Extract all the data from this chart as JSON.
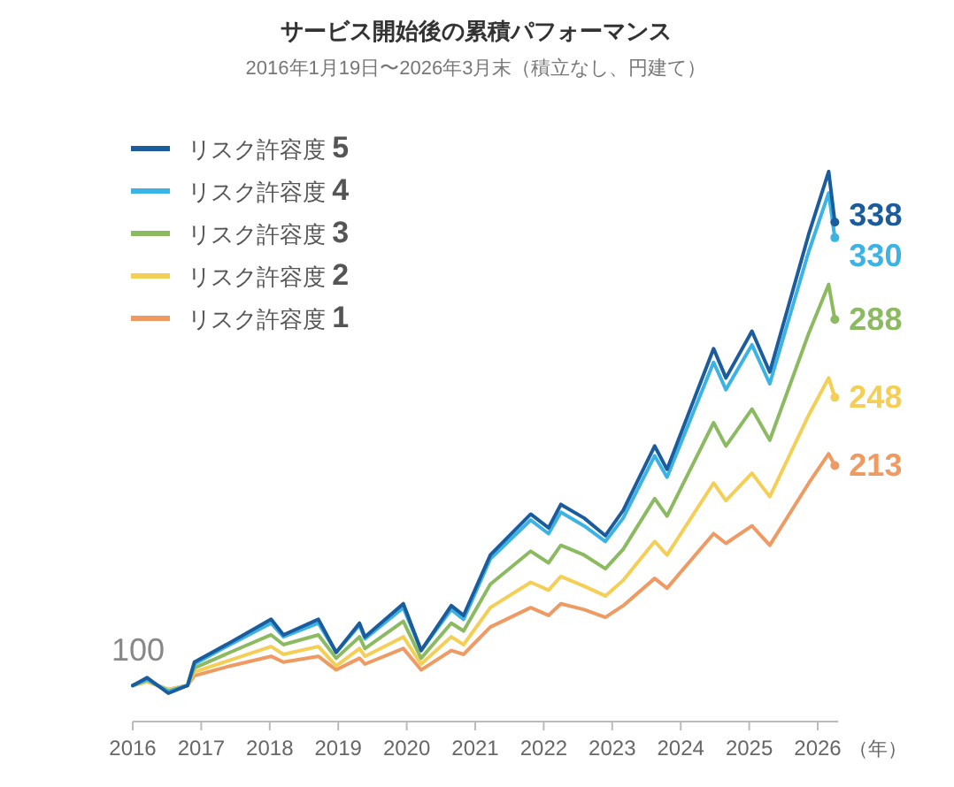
{
  "chart_data": {
    "type": "line",
    "title": "サービス開始後の累積パフォーマンス",
    "subtitle": "2016年1月19日〜2026年3月末（積立なし、円建て）",
    "xlabel": "（年）",
    "x": [
      2016.0,
      2016.21,
      2016.52,
      2016.8,
      2016.9,
      2017.42,
      2018.02,
      2018.2,
      2018.71,
      2018.97,
      2019.31,
      2019.39,
      2019.95,
      2020.21,
      2020.65,
      2020.83,
      2021.22,
      2021.81,
      2022.07,
      2022.25,
      2022.59,
      2022.9,
      2023.16,
      2023.62,
      2023.8,
      2024.48,
      2024.66,
      2025.04,
      2025.3,
      2025.87,
      2026.16,
      2026.25
    ],
    "series": [
      {
        "name": "リスク許容度 **5**",
        "color": "#1b5c9c",
        "values": [
          100,
          104,
          96,
          100,
          112,
          122,
          134,
          126,
          134,
          117,
          132,
          125,
          142,
          118,
          141,
          136,
          167,
          188,
          181,
          193,
          186,
          177,
          190,
          223,
          211,
          273,
          258,
          282,
          261,
          332,
          364,
          338
        ],
        "value_labels": [
          null,
          null,
          null,
          null,
          null,
          null,
          null,
          null,
          null,
          null,
          null,
          null,
          null,
          null,
          null,
          null,
          null,
          null,
          null,
          null,
          null,
          null,
          null,
          null,
          null,
          null,
          null,
          null,
          null,
          null,
          null,
          "338"
        ]
      },
      {
        "name": "リスク許容度 **4**",
        "color": "#3bb3e4",
        "values": [
          100,
          103,
          97,
          100,
          111,
          121,
          132,
          125,
          132,
          117,
          131,
          124,
          140,
          118,
          139,
          134,
          165,
          185,
          178,
          189,
          182,
          174,
          186,
          218,
          207,
          266,
          252,
          275,
          255,
          323,
          353,
          330
        ],
        "value_labels": [
          null,
          null,
          null,
          null,
          null,
          null,
          null,
          null,
          null,
          null,
          null,
          null,
          null,
          null,
          null,
          null,
          null,
          null,
          null,
          null,
          null,
          null,
          null,
          null,
          null,
          null,
          null,
          null,
          null,
          null,
          null,
          "330"
        ]
      },
      {
        "name": "リスク許容度 **3**",
        "color": "#8bba60",
        "values": [
          100,
          103,
          97,
          100,
          109,
          117,
          126,
          121,
          126,
          114,
          125,
          119,
          133,
          114,
          132,
          128,
          152,
          169,
          163,
          172,
          167,
          160,
          170,
          196,
          187,
          235,
          223,
          242,
          226,
          281,
          306,
          288
        ],
        "value_labels": [
          null,
          null,
          null,
          null,
          null,
          null,
          null,
          null,
          null,
          null,
          null,
          null,
          null,
          null,
          null,
          null,
          null,
          null,
          null,
          null,
          null,
          null,
          null,
          null,
          null,
          null,
          null,
          null,
          null,
          null,
          null,
          "288"
        ]
      },
      {
        "name": "リスク許容度 **2**",
        "color": "#f5ce55",
        "values": [
          100,
          102,
          98,
          100,
          107,
          113,
          120,
          116,
          120,
          110,
          119,
          115,
          125,
          111,
          125,
          121,
          140,
          153,
          149,
          156,
          151,
          146,
          154,
          174,
          167,
          204,
          195,
          209,
          197,
          239,
          258,
          248
        ],
        "value_labels": [
          null,
          null,
          null,
          null,
          null,
          null,
          null,
          null,
          null,
          null,
          null,
          null,
          null,
          null,
          null,
          null,
          null,
          null,
          null,
          null,
          null,
          null,
          null,
          null,
          null,
          null,
          null,
          null,
          null,
          null,
          null,
          "248"
        ]
      },
      {
        "name": "リスク許容度 **1**",
        "color": "#ef9a62",
        "values": [
          100,
          102,
          98,
          100,
          105,
          110,
          115,
          112,
          115,
          108,
          114,
          111,
          119,
          108,
          118,
          116,
          130,
          140,
          136,
          142,
          139,
          135,
          141,
          155,
          150,
          178,
          173,
          182,
          172,
          204,
          219,
          213
        ],
        "value_labels": [
          null,
          null,
          null,
          null,
          null,
          null,
          null,
          null,
          null,
          null,
          null,
          null,
          null,
          null,
          null,
          null,
          null,
          null,
          null,
          null,
          null,
          null,
          null,
          null,
          null,
          null,
          null,
          null,
          null,
          null,
          null,
          "213"
        ]
      }
    ],
    "annotations": [
      {
        "text": "100",
        "x": 2016,
        "y": 100
      }
    ],
    "xlim": [
      2016,
      2026.3
    ],
    "xticks": [
      2016,
      2017,
      2018,
      2019,
      2020,
      2021,
      2022,
      2023,
      2024,
      2025,
      2026
    ],
    "tick_labels": "x",
    "legend": "top left",
    "line_style": "solid"
  }
}
